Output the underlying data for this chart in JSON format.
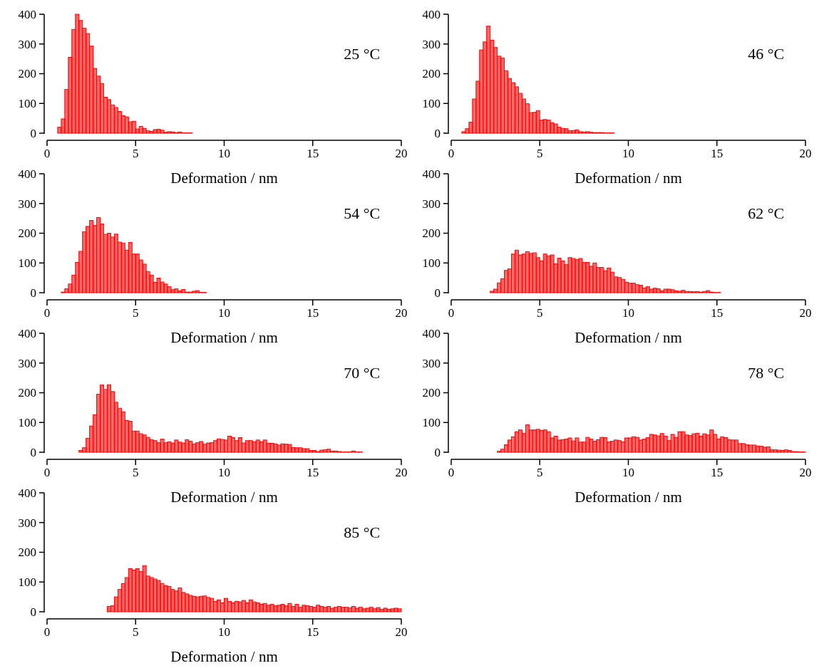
{
  "chart_data": [
    {
      "type": "histogram",
      "xlabel": "Deformation / nm",
      "annotations": [
        "25 °C"
      ],
      "color": "#ff0000",
      "xlim": [
        0,
        20
      ],
      "xticks": [
        0,
        5,
        10,
        15,
        20
      ],
      "ylim": [
        0,
        400
      ],
      "yticks": [
        0,
        100,
        200,
        300,
        400
      ],
      "bins": [
        0,
        0.2,
        0.4,
        0.6,
        0.8,
        1,
        1.2,
        1.4,
        1.6,
        1.8,
        2,
        2.2,
        2.4,
        2.6,
        2.8,
        3,
        3.2,
        3.4,
        3.6,
        3.8,
        4,
        4.2,
        4.4,
        4.6,
        4.8,
        5,
        5.2,
        5.4,
        5.6,
        5.8,
        6,
        6.2,
        6.4,
        6.6,
        6.8,
        7,
        7.2,
        7.4,
        7.6,
        7.8,
        8,
        8.2,
        8.4,
        8.6,
        8.8,
        9,
        9.2,
        9.4,
        9.6,
        9.8,
        10,
        10.2,
        10.4,
        10.6,
        10.8,
        11,
        11.2,
        11.4,
        11.6,
        11.8,
        12,
        12.2,
        12.4,
        12.6,
        12.8,
        13,
        13.2,
        13.4,
        13.6,
        13.8,
        14,
        14.2,
        14.4,
        14.6,
        14.8,
        15,
        15.2,
        15.4,
        15.6,
        15.8,
        16,
        16.2,
        16.4,
        16.6,
        16.8,
        17,
        17.2,
        17.4,
        17.6,
        17.8,
        18,
        18.2,
        18.4,
        18.6,
        18.8,
        19,
        19.2,
        19.4,
        19.6,
        19.8,
        20
      ],
      "values": [
        0,
        0,
        0,
        20,
        48,
        147,
        255,
        349,
        400,
        379,
        353,
        335,
        293,
        218,
        192,
        167,
        121,
        113,
        95,
        86,
        73,
        59,
        55,
        38,
        40,
        14,
        23,
        16,
        8,
        6,
        12,
        13,
        10,
        3,
        5,
        4,
        2,
        4,
        1,
        1,
        1,
        0,
        0,
        0,
        0,
        0,
        0,
        0,
        0,
        0,
        0,
        0,
        0,
        0,
        0,
        0,
        0,
        0,
        0,
        0,
        0,
        0,
        0,
        0,
        0,
        0,
        0,
        0,
        0,
        0,
        0,
        0,
        0,
        0,
        0,
        0,
        0,
        0,
        0,
        0,
        0,
        0,
        0,
        0,
        0,
        0,
        0,
        0,
        0,
        0,
        0,
        0,
        0,
        0,
        0,
        0,
        0,
        0,
        0,
        0
      ]
    },
    {
      "type": "histogram",
      "xlabel": "Deformation / nm",
      "annotations": [
        "46 °C"
      ],
      "color": "#ff0000",
      "xlim": [
        0,
        20
      ],
      "xticks": [
        0,
        5,
        10,
        15,
        20
      ],
      "ylim": [
        0,
        400
      ],
      "yticks": [
        0,
        100,
        200,
        300,
        400
      ],
      "bins": [
        0,
        0.2,
        0.4,
        0.6,
        0.8,
        1,
        1.2,
        1.4,
        1.6,
        1.8,
        2,
        2.2,
        2.4,
        2.6,
        2.8,
        3,
        3.2,
        3.4,
        3.6,
        3.8,
        4,
        4.2,
        4.4,
        4.6,
        4.8,
        5,
        5.2,
        5.4,
        5.6,
        5.8,
        6,
        6.2,
        6.4,
        6.6,
        6.8,
        7,
        7.2,
        7.4,
        7.6,
        7.8,
        8,
        8.2,
        8.4,
        8.6,
        8.8,
        9,
        9.2,
        9.4,
        9.6,
        9.8,
        10,
        10.2,
        10.4,
        10.6,
        10.8,
        11,
        11.2,
        11.4,
        11.6,
        11.8,
        12,
        12.2,
        12.4,
        12.6,
        12.8,
        13,
        13.2,
        13.4,
        13.6,
        13.8,
        14,
        14.2,
        14.4,
        14.6,
        14.8,
        15,
        15.2,
        15.4,
        15.6,
        15.8,
        16,
        16.2,
        16.4,
        16.6,
        16.8,
        17,
        17.2,
        17.4,
        17.6,
        17.8,
        18,
        18.2,
        18.4,
        18.6,
        18.8,
        19,
        19.2,
        19.4,
        19.6,
        19.8,
        20
      ],
      "values": [
        0,
        0,
        0,
        5,
        15,
        37,
        115,
        175,
        280,
        307,
        360,
        313,
        288,
        259,
        253,
        210,
        184,
        170,
        156,
        134,
        115,
        99,
        69,
        70,
        76,
        44,
        46,
        44,
        35,
        31,
        20,
        16,
        15,
        8,
        9,
        11,
        5,
        4,
        5,
        3,
        2,
        2,
        2,
        1,
        1,
        1,
        0,
        0,
        0,
        0,
        0,
        0,
        0,
        0,
        0,
        0,
        0,
        0,
        0,
        0,
        0,
        0,
        0,
        0,
        0,
        0,
        0,
        0,
        0,
        0,
        0,
        0,
        0,
        0,
        0,
        0,
        0,
        0,
        0,
        0,
        0,
        0,
        0,
        0,
        0,
        0,
        0,
        0,
        0,
        0,
        0,
        0,
        0,
        0,
        0,
        0,
        0,
        0,
        0,
        0
      ]
    },
    {
      "type": "histogram",
      "xlabel": "Deformation / nm",
      "annotations": [
        "54 °C"
      ],
      "color": "#ff0000",
      "xlim": [
        0,
        20
      ],
      "xticks": [
        0,
        5,
        10,
        15,
        20
      ],
      "ylim": [
        0,
        400
      ],
      "yticks": [
        0,
        100,
        200,
        300,
        400
      ],
      "bins": [
        0,
        0.2,
        0.4,
        0.6,
        0.8,
        1,
        1.2,
        1.4,
        1.6,
        1.8,
        2,
        2.2,
        2.4,
        2.6,
        2.8,
        3,
        3.2,
        3.4,
        3.6,
        3.8,
        4,
        4.2,
        4.4,
        4.6,
        4.8,
        5,
        5.2,
        5.4,
        5.6,
        5.8,
        6,
        6.2,
        6.4,
        6.6,
        6.8,
        7,
        7.2,
        7.4,
        7.6,
        7.8,
        8,
        8.2,
        8.4,
        8.6,
        8.8,
        9,
        9.2,
        9.4,
        9.6,
        9.8,
        10,
        10.2,
        10.4,
        10.6,
        10.8,
        11,
        11.2,
        11.4,
        11.6,
        11.8,
        12,
        12.2,
        12.4,
        12.6,
        12.8,
        13,
        13.2,
        13.4,
        13.6,
        13.8,
        14,
        14.2,
        14.4,
        14.6,
        14.8,
        15,
        15.2,
        15.4,
        15.6,
        15.8,
        16,
        16.2,
        16.4,
        16.6,
        16.8,
        17,
        17.2,
        17.4,
        17.6,
        17.8,
        18,
        18.2,
        18.4,
        18.6,
        18.8,
        19,
        19.2,
        19.4,
        19.6,
        19.8,
        20
      ],
      "values": [
        0,
        0,
        0,
        0,
        2,
        13,
        29,
        59,
        102,
        139,
        205,
        223,
        243,
        226,
        253,
        231,
        196,
        200,
        187,
        197,
        170,
        167,
        143,
        169,
        130,
        130,
        110,
        96,
        71,
        59,
        35,
        49,
        36,
        29,
        20,
        10,
        13,
        6,
        11,
        2,
        2,
        5,
        7,
        1,
        1,
        0,
        0,
        0,
        0,
        0,
        0,
        0,
        0,
        0,
        0,
        0,
        0,
        0,
        0,
        0,
        0,
        0,
        0,
        0,
        0,
        0,
        0,
        0,
        0,
        0,
        0,
        0,
        0,
        0,
        0,
        0,
        0,
        0,
        0,
        0,
        0,
        0,
        0,
        0,
        0,
        0,
        0,
        0,
        0,
        0,
        0,
        0,
        0,
        0,
        0,
        0,
        0,
        0,
        0,
        0
      ]
    },
    {
      "type": "histogram",
      "xlabel": "Deformation / nm",
      "annotations": [
        "62 °C"
      ],
      "color": "#ff0000",
      "xlim": [
        0,
        20
      ],
      "xticks": [
        0,
        5,
        10,
        15,
        20
      ],
      "ylim": [
        0,
        400
      ],
      "yticks": [
        0,
        100,
        200,
        300,
        400
      ],
      "bins": [
        0,
        0.2,
        0.4,
        0.6,
        0.8,
        1,
        1.2,
        1.4,
        1.6,
        1.8,
        2,
        2.2,
        2.4,
        2.6,
        2.8,
        3,
        3.2,
        3.4,
        3.6,
        3.8,
        4,
        4.2,
        4.4,
        4.6,
        4.8,
        5,
        5.2,
        5.4,
        5.6,
        5.8,
        6,
        6.2,
        6.4,
        6.6,
        6.8,
        7,
        7.2,
        7.4,
        7.6,
        7.8,
        8,
        8.2,
        8.4,
        8.6,
        8.8,
        9,
        9.2,
        9.4,
        9.6,
        9.8,
        10,
        10.2,
        10.4,
        10.6,
        10.8,
        11,
        11.2,
        11.4,
        11.6,
        11.8,
        12,
        12.2,
        12.4,
        12.6,
        12.8,
        13,
        13.2,
        13.4,
        13.6,
        13.8,
        14,
        14.2,
        14.4,
        14.6,
        14.8,
        15,
        15.2,
        15.4,
        15.6,
        15.8,
        16,
        16.2,
        16.4,
        16.6,
        16.8,
        17,
        17.2,
        17.4,
        17.6,
        17.8,
        18,
        18.2,
        18.4,
        18.6,
        18.8,
        19,
        19.2,
        19.4,
        19.6,
        19.8,
        20
      ],
      "values": [
        0,
        0,
        0,
        0,
        0,
        0,
        0,
        0,
        0,
        0,
        0,
        5,
        12,
        33,
        47,
        75,
        80,
        130,
        143,
        127,
        130,
        138,
        132,
        134,
        118,
        107,
        130,
        124,
        127,
        97,
        116,
        107,
        95,
        118,
        115,
        111,
        115,
        102,
        102,
        89,
        100,
        85,
        85,
        74,
        83,
        69,
        53,
        51,
        45,
        35,
        32,
        32,
        27,
        25,
        16,
        20,
        12,
        15,
        13,
        6,
        12,
        12,
        10,
        6,
        5,
        8,
        4,
        4,
        3,
        4,
        2,
        4,
        7,
        2,
        1,
        1,
        0,
        0,
        0,
        0,
        0,
        0,
        0,
        0,
        0,
        0,
        0,
        0,
        0,
        0,
        0,
        0,
        0,
        0,
        0,
        0,
        0,
        0,
        0,
        0
      ]
    },
    {
      "type": "histogram",
      "xlabel": "Deformation / nm",
      "annotations": [
        "70 °C"
      ],
      "color": "#ff0000",
      "xlim": [
        0,
        20
      ],
      "xticks": [
        0,
        5,
        10,
        15,
        20
      ],
      "ylim": [
        0,
        400
      ],
      "yticks": [
        0,
        100,
        200,
        300,
        400
      ],
      "bins": [
        0,
        0.2,
        0.4,
        0.6,
        0.8,
        1,
        1.2,
        1.4,
        1.6,
        1.8,
        2,
        2.2,
        2.4,
        2.6,
        2.8,
        3,
        3.2,
        3.4,
        3.6,
        3.8,
        4,
        4.2,
        4.4,
        4.6,
        4.8,
        5,
        5.2,
        5.4,
        5.6,
        5.8,
        6,
        6.2,
        6.4,
        6.6,
        6.8,
        7,
        7.2,
        7.4,
        7.6,
        7.8,
        8,
        8.2,
        8.4,
        8.6,
        8.8,
        9,
        9.2,
        9.4,
        9.6,
        9.8,
        10,
        10.2,
        10.4,
        10.6,
        10.8,
        11,
        11.2,
        11.4,
        11.6,
        11.8,
        12,
        12.2,
        12.4,
        12.6,
        12.8,
        13,
        13.2,
        13.4,
        13.6,
        13.8,
        14,
        14.2,
        14.4,
        14.6,
        14.8,
        15,
        15.2,
        15.4,
        15.6,
        15.8,
        16,
        16.2,
        16.4,
        16.6,
        16.8,
        17,
        17.2,
        17.4,
        17.6,
        17.8,
        18,
        18.2,
        18.4,
        18.6,
        18.8,
        19,
        19.2,
        19.4,
        19.6,
        19.8,
        20
      ],
      "values": [
        0,
        0,
        0,
        0,
        0,
        0,
        0,
        0,
        0,
        6,
        15,
        47,
        88,
        126,
        195,
        226,
        211,
        227,
        204,
        168,
        148,
        136,
        107,
        104,
        71,
        71,
        62,
        58,
        50,
        42,
        39,
        32,
        44,
        32,
        35,
        31,
        41,
        34,
        31,
        42,
        37,
        28,
        32,
        36,
        27,
        31,
        32,
        39,
        45,
        43,
        41,
        54,
        49,
        39,
        49,
        31,
        39,
        39,
        35,
        41,
        35,
        41,
        30,
        30,
        28,
        24,
        28,
        27,
        26,
        16,
        15,
        15,
        12,
        12,
        6,
        6,
        2,
        7,
        8,
        10,
        4,
        4,
        2,
        1,
        1,
        1,
        4,
        1,
        1,
        0,
        0,
        0,
        0,
        0,
        0,
        0,
        0,
        0,
        0,
        0
      ]
    },
    {
      "type": "histogram",
      "xlabel": "Deformation / nm",
      "annotations": [
        "78 °C"
      ],
      "color": "#ff0000",
      "xlim": [
        0,
        20
      ],
      "xticks": [
        0,
        5,
        10,
        15,
        20
      ],
      "ylim": [
        0,
        400
      ],
      "yticks": [
        0,
        100,
        200,
        300,
        400
      ],
      "bins": [
        0,
        0.2,
        0.4,
        0.6,
        0.8,
        1,
        1.2,
        1.4,
        1.6,
        1.8,
        2,
        2.2,
        2.4,
        2.6,
        2.8,
        3,
        3.2,
        3.4,
        3.6,
        3.8,
        4,
        4.2,
        4.4,
        4.6,
        4.8,
        5,
        5.2,
        5.4,
        5.6,
        5.8,
        6,
        6.2,
        6.4,
        6.6,
        6.8,
        7,
        7.2,
        7.4,
        7.6,
        7.8,
        8,
        8.2,
        8.4,
        8.6,
        8.8,
        9,
        9.2,
        9.4,
        9.6,
        9.8,
        10,
        10.2,
        10.4,
        10.6,
        10.8,
        11,
        11.2,
        11.4,
        11.6,
        11.8,
        12,
        12.2,
        12.4,
        12.6,
        12.8,
        13,
        13.2,
        13.4,
        13.6,
        13.8,
        14,
        14.2,
        14.4,
        14.6,
        14.8,
        15,
        15.2,
        15.4,
        15.6,
        15.8,
        16,
        16.2,
        16.4,
        16.6,
        16.8,
        17,
        17.2,
        17.4,
        17.6,
        17.8,
        18,
        18.2,
        18.4,
        18.6,
        18.8,
        19,
        19.2,
        19.4,
        19.6,
        19.8,
        20
      ],
      "values": [
        0,
        0,
        0,
        0,
        0,
        0,
        0,
        0,
        0,
        0,
        0,
        0,
        0,
        3,
        10,
        25,
        41,
        52,
        69,
        75,
        63,
        92,
        75,
        75,
        77,
        73,
        75,
        69,
        48,
        54,
        41,
        42,
        44,
        48,
        38,
        48,
        34,
        34,
        50,
        44,
        37,
        42,
        50,
        49,
        35,
        37,
        41,
        39,
        35,
        48,
        48,
        52,
        50,
        41,
        44,
        49,
        60,
        58,
        55,
        63,
        54,
        39,
        60,
        50,
        69,
        69,
        58,
        56,
        62,
        64,
        54,
        62,
        58,
        75,
        60,
        45,
        52,
        49,
        42,
        41,
        41,
        29,
        29,
        25,
        24,
        24,
        21,
        20,
        17,
        18,
        8,
        8,
        7,
        6,
        8,
        6,
        2,
        2,
        1,
        1
      ]
    },
    {
      "type": "histogram",
      "xlabel": "Deformation / nm",
      "annotations": [
        "85 °C"
      ],
      "color": "#ff0000",
      "xlim": [
        0,
        20
      ],
      "xticks": [
        0,
        5,
        10,
        15,
        20
      ],
      "ylim": [
        0,
        400
      ],
      "yticks": [
        0,
        100,
        200,
        300,
        400
      ],
      "bins": [
        0,
        0.2,
        0.4,
        0.6,
        0.8,
        1,
        1.2,
        1.4,
        1.6,
        1.8,
        2,
        2.2,
        2.4,
        2.6,
        2.8,
        3,
        3.2,
        3.4,
        3.6,
        3.8,
        4,
        4.2,
        4.4,
        4.6,
        4.8,
        5,
        5.2,
        5.4,
        5.6,
        5.8,
        6,
        6.2,
        6.4,
        6.6,
        6.8,
        7,
        7.2,
        7.4,
        7.6,
        7.8,
        8,
        8.2,
        8.4,
        8.6,
        8.8,
        9,
        9.2,
        9.4,
        9.6,
        9.8,
        10,
        10.2,
        10.4,
        10.6,
        10.8,
        11,
        11.2,
        11.4,
        11.6,
        11.8,
        12,
        12.2,
        12.4,
        12.6,
        12.8,
        13,
        13.2,
        13.4,
        13.6,
        13.8,
        14,
        14.2,
        14.4,
        14.6,
        14.8,
        15,
        15.2,
        15.4,
        15.6,
        15.8,
        16,
        16.2,
        16.4,
        16.6,
        16.8,
        17,
        17.2,
        17.4,
        17.6,
        17.8,
        18,
        18.2,
        18.4,
        18.6,
        18.8,
        19,
        19.2,
        19.4,
        19.6,
        19.8,
        20
      ],
      "values": [
        0,
        0,
        0,
        0,
        0,
        0,
        0,
        0,
        0,
        0,
        0,
        0,
        0,
        0,
        0,
        0,
        0,
        18,
        20,
        50,
        75,
        95,
        115,
        145,
        140,
        145,
        135,
        155,
        120,
        115,
        110,
        105,
        95,
        88,
        85,
        75,
        70,
        80,
        65,
        60,
        55,
        52,
        50,
        52,
        53,
        48,
        45,
        35,
        40,
        30,
        45,
        35,
        30,
        35,
        33,
        38,
        30,
        40,
        33,
        30,
        25,
        28,
        22,
        25,
        20,
        22,
        25,
        20,
        28,
        18,
        25,
        15,
        22,
        20,
        18,
        15,
        22,
        18,
        15,
        18,
        12,
        15,
        18,
        15,
        15,
        13,
        18,
        12,
        15,
        10,
        12,
        15,
        10,
        14,
        8,
        12,
        8,
        10,
        12,
        10
      ]
    }
  ]
}
